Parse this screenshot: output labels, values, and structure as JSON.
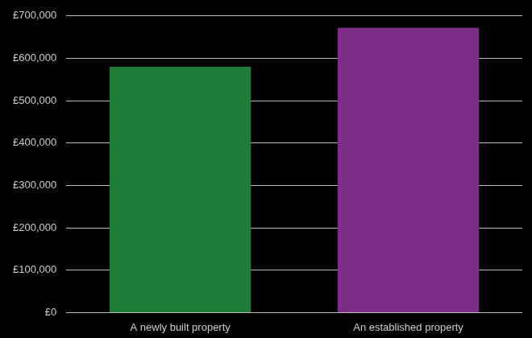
{
  "chart_data": {
    "type": "bar",
    "categories": [
      "A newly built property",
      "An established property"
    ],
    "values": [
      580000,
      672000
    ],
    "colors": [
      "#1e7b35",
      "#7b2d87"
    ],
    "ylim": [
      0,
      700000
    ],
    "yticks": [
      {
        "value": 0,
        "label": "£0"
      },
      {
        "value": 100000,
        "label": "£100,000"
      },
      {
        "value": 200000,
        "label": "£200,000"
      },
      {
        "value": 300000,
        "label": "£300,000"
      },
      {
        "value": 400000,
        "label": "£400,000"
      },
      {
        "value": 500000,
        "label": "£500,000"
      },
      {
        "value": 600000,
        "label": "£600,000"
      },
      {
        "value": 700000,
        "label": "£700,000"
      }
    ],
    "grid": true
  }
}
